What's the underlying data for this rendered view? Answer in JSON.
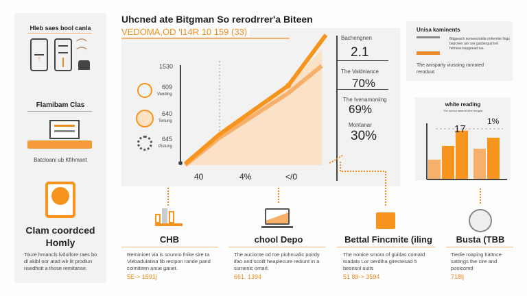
{
  "title": "Uhcned ate Bitgman So rerodrrer'a Biteen",
  "subtitle": "VEDOMA,OD 'I14R 10 159 (33)",
  "left": {
    "section1": "Hleb saes bool canla",
    "section2": "Flamibam Clas",
    "caption2": "Batcloani ub Kfihmant",
    "heading3": "Clam coordced Homly",
    "body3": "Toure hmancls lvduifore raes bo dl akibl oor atad wlr lit prodlun nsedhoit a those remitanse."
  },
  "chart": {
    "y_labels": [
      {
        "value": "1530",
        "sub": ""
      },
      {
        "value": "609",
        "sub": "Vending"
      },
      {
        "value": "640",
        "sub": "Tenung"
      },
      {
        "value": "645",
        "sub": "Pistung"
      }
    ],
    "x_labels": [
      "40",
      "4%",
      "</0"
    ],
    "line_color": "#f7941d",
    "fill_color": "#fbe2c6"
  },
  "stats": [
    {
      "label": "Bachengnen",
      "value": "2.1"
    },
    {
      "label": "The Valdniance",
      "value": "70%"
    },
    {
      "label": "The Ivenamoniing",
      "value": "69%"
    },
    {
      "label": "Montanar",
      "value": "30%"
    }
  ],
  "info_box": {
    "title": "Unisa kaminents",
    "text": "Bitgpeach nomeecmbtle oohernler llogs bepcreer am cee gasbergud trel hetness bopgeead tue.",
    "footer": "The anisparty viusoing ranrated reroduut"
  },
  "bar_box": {
    "title": "white reading",
    "subtitle": "The ourlucl bastruh lhbe tmrgpla",
    "labels": [
      "17",
      "1%"
    ],
    "bars": [
      {
        "value": 0.35,
        "shade": "light"
      },
      {
        "value": 0.6,
        "shade": "dark"
      },
      {
        "value": 0.88,
        "shade": "dark"
      },
      {
        "value": 0.55,
        "shade": "light"
      },
      {
        "value": 0.75,
        "shade": "dark"
      }
    ]
  },
  "columns": [
    {
      "title": "CHB",
      "text": "Reminioet via is sounno fnike sire ta Vlebadulatina lib  recipon rande pand coimitiren anue ganet.",
      "number": "5E-> 1591j"
    },
    {
      "title": "chool Depo",
      "text": "The aucionte od toe piohnualic poirdy ifao and scoilt heaplecure rediunt in a sumenic omarl.",
      "number": "661. 1394"
    },
    {
      "title": "Bettal Fincmite (iling",
      "text": "The nonice smora of guidas comatd toadats Lor oerdiha girectesad 5 beonsol ouits",
      "number": "51 89-> 3594"
    },
    {
      "title": "Busta (TBB",
      "text": "Tiedie roaping hattnce sattings the cire and pooicomd",
      "number": "718lj"
    }
  ]
}
